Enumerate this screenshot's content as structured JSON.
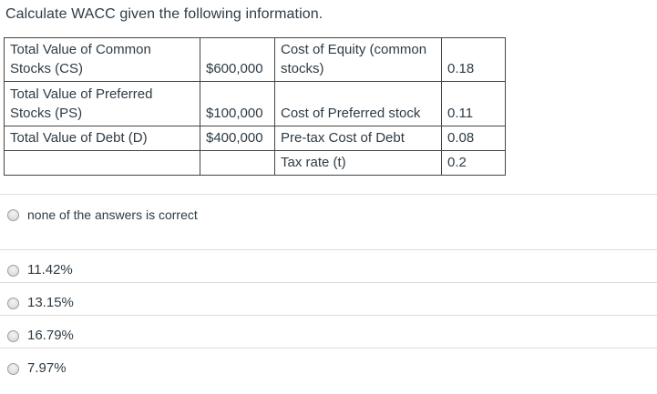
{
  "question": {
    "title": "Calculate WACC given the following information."
  },
  "table": {
    "rows": [
      {
        "c0": "Total Value of Common Stocks (CS)",
        "c1": "$600,000",
        "c2": "Cost of Equity (common stocks)",
        "c3": "0.18"
      },
      {
        "c0": "Total Value of Preferred Stocks (PS)",
        "c1": "$100,000",
        "c2": "Cost of Preferred stock",
        "c3": "0.11"
      },
      {
        "c0": "Total Value of Debt (D)",
        "c1": "$400,000",
        "c2": "Pre-tax Cost of Debt",
        "c3": "0.08"
      },
      {
        "c0": "",
        "c1": "",
        "c2": "Tax rate (t)",
        "c3": "0.2"
      }
    ]
  },
  "answers": {
    "options": [
      {
        "label": "none of the answers is correct",
        "selected": false
      },
      {
        "label": "11.42%",
        "selected": false
      },
      {
        "label": "13.15%",
        "selected": false
      },
      {
        "label": "16.79%",
        "selected": false
      },
      {
        "label": "7.97%",
        "selected": false
      }
    ]
  },
  "colors": {
    "text": "#2d3b45",
    "table_border": "#444444",
    "divider": "#dddddd",
    "radio_border": "#9e9e9e",
    "radio_fill": "#e2e2e2",
    "background": "#ffffff"
  }
}
